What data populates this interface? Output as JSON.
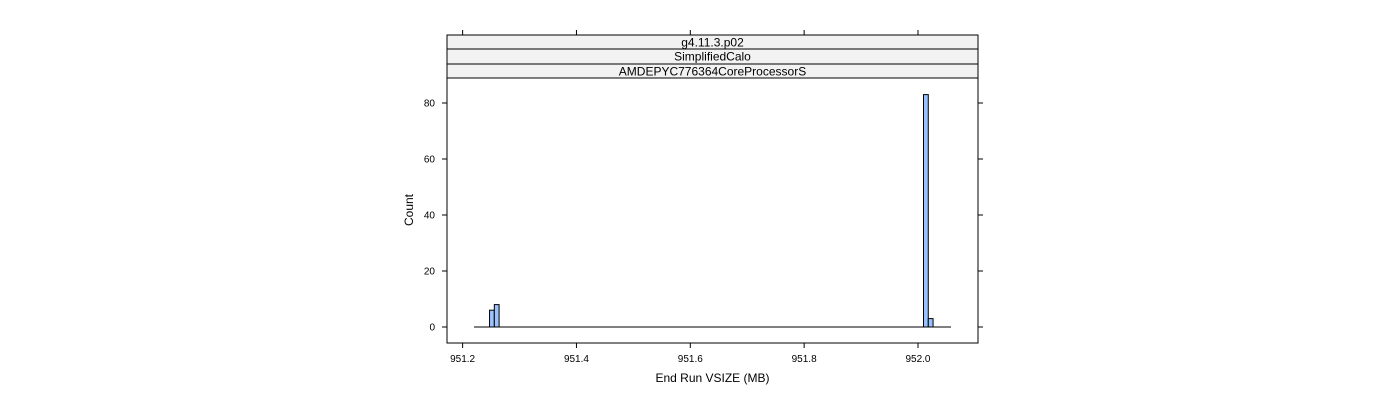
{
  "chart_data": {
    "type": "bar",
    "strips": [
      "g4.11.3.p02",
      "SimplifiedCalo",
      "AMDEPYC776364CoreProcessorS"
    ],
    "xlabel": "End Run VSIZE (MB)",
    "ylabel": "Count",
    "xlim": [
      951.22,
      952.058
    ],
    "ylim": [
      0,
      83
    ],
    "xticks": [
      951.2,
      951.4,
      951.6,
      951.8,
      952.0
    ],
    "xtick_labels": [
      "951.2",
      "951.4",
      "951.6",
      "951.8",
      "952.0"
    ],
    "yticks": [
      0,
      20,
      40,
      60,
      80
    ],
    "ytick_labels": [
      "0",
      "20",
      "40",
      "60",
      "80"
    ],
    "bin_width": 0.00838,
    "bins": [
      {
        "start": 951.2473,
        "count": 6
      },
      {
        "start": 951.2557,
        "count": 8
      },
      {
        "start": 952.0097,
        "count": 83
      },
      {
        "start": 952.0181,
        "count": 3
      }
    ],
    "colors": {
      "bar_fill": "#99c2ff",
      "strip_fill": "#f2f2f2"
    }
  }
}
